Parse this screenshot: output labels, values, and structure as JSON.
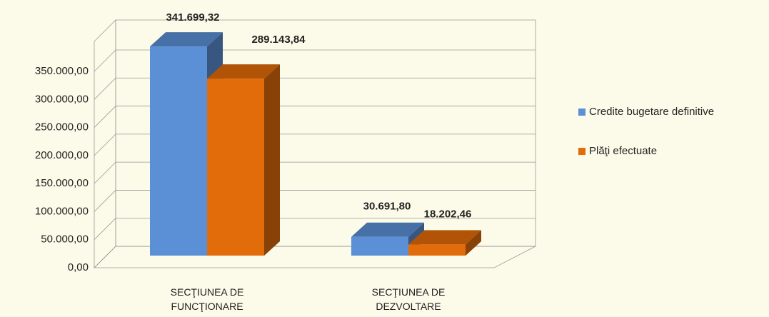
{
  "chart_data": {
    "type": "bar3d",
    "categories": [
      "SECŢIUNEA DE FUNCŢIONARE",
      "SECŢIUNEA DE DEZVOLTARE"
    ],
    "series": [
      {
        "name": "Credite bugetare definitive",
        "color": "#5b8fd6",
        "values": [
          341699.32,
          30691.8
        ],
        "value_labels": [
          "341.699,32",
          "30.691,80"
        ]
      },
      {
        "name": "Plăţi efectuate",
        "color": "#e36c0a",
        "values": [
          289143.84,
          18202.46
        ],
        "value_labels": [
          "289.143,84",
          "18.202,46"
        ]
      }
    ],
    "ylim": [
      0,
      350000
    ],
    "yticks": [
      {
        "value": 0,
        "label": "0,00"
      },
      {
        "value": 50000,
        "label": "50.000,00"
      },
      {
        "value": 100000,
        "label": "100.000,00"
      },
      {
        "value": 150000,
        "label": "150.000,00"
      },
      {
        "value": 200000,
        "label": "200.000,00"
      },
      {
        "value": 250000,
        "label": "250.000,00"
      },
      {
        "value": 300000,
        "label": "300.000,00"
      },
      {
        "value": 350000,
        "label": "350.000,00"
      }
    ],
    "grid": true,
    "legend": "right"
  }
}
